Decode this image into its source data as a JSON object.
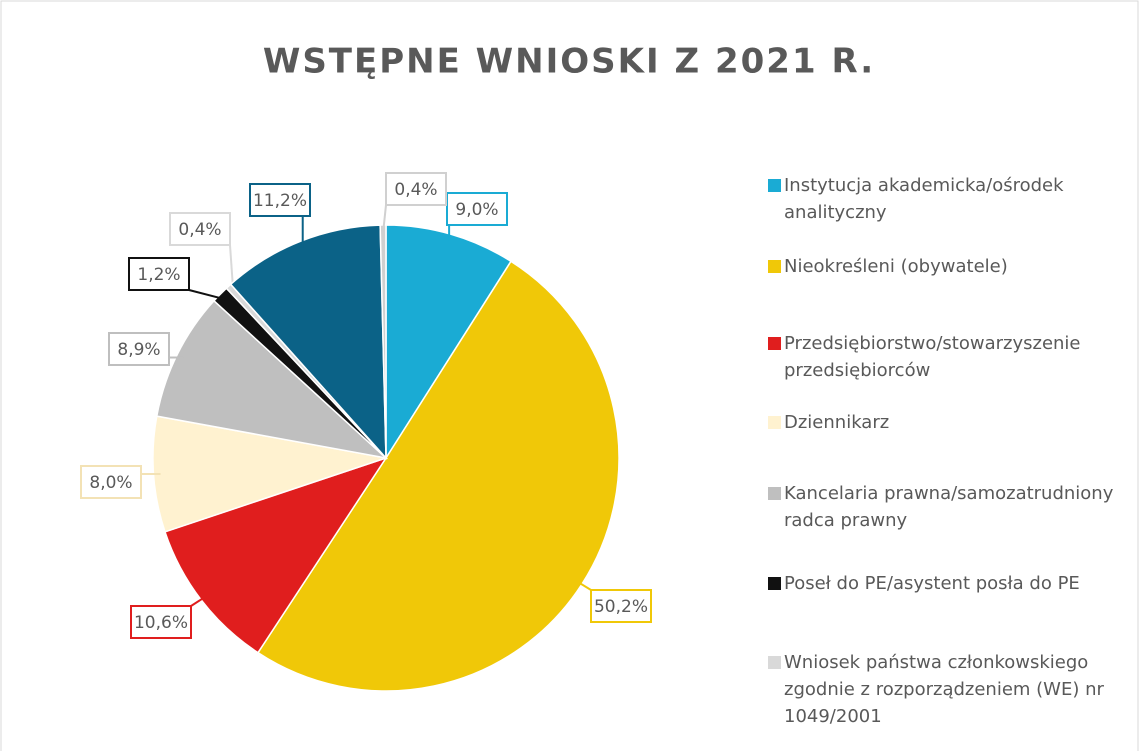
{
  "chart_data": {
    "type": "pie",
    "title": "WSTĘPNE WNIOSKI Z 2021 R.",
    "categories": [
      "Instytucja akademicka/ośrodek analityczny",
      "Nieokreśleni (obywatele)",
      "Przedsiębiorstwo/stowarzyszenie przedsiębiorców",
      "Dziennikarz",
      "Kancelaria prawna/samozatrudniony radca prawny",
      "Poseł do PE/asystent posła do PE",
      "Wniosek państwa członkowskiego zgodnie z rozporządzeniem (WE) nr 1049/2001",
      null,
      null
    ],
    "values": [
      9.0,
      50.2,
      10.6,
      8.0,
      8.9,
      1.2,
      0.4,
      11.2,
      0.4
    ],
    "value_labels": [
      "9,0%",
      "50,2%",
      "10,6%",
      "8,0%",
      "8,9%",
      "1,2%",
      "0,4%",
      "11,2%",
      "0,4%"
    ],
    "colors": [
      "#1aabd4",
      "#f0c808",
      "#e01e1e",
      "#fff2d0",
      "#bfbfbf",
      "#111111",
      "#d9d9d9",
      "#0b6287",
      "#d0d0d0"
    ],
    "legend": "right"
  }
}
